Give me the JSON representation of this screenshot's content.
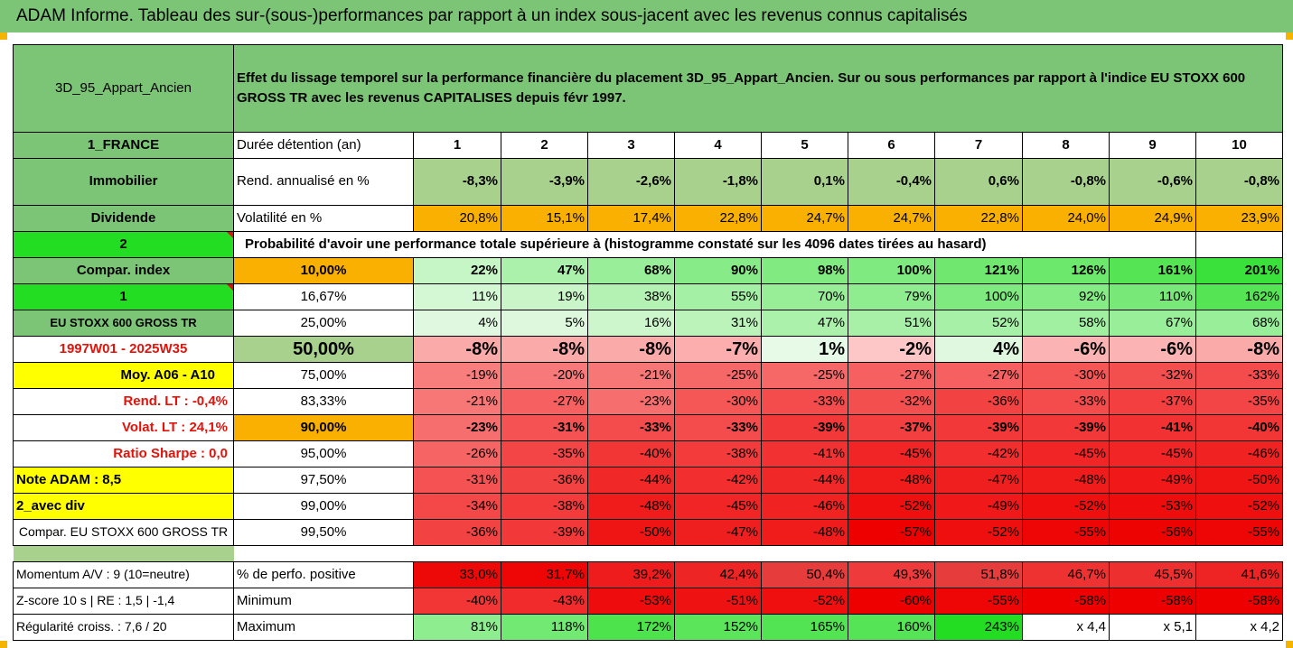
{
  "title": "ADAM Informe. Tableau des sur-(sous-)performances par rapport à un index sous-jacent avec les revenus connus capitalisés",
  "asset_name": "3D_95_Appart_Ancien",
  "description": "Effet du lissage temporel sur la performance financière du placement 3D_95_Appart_Ancien. Sur ou sous performances par rapport à l'indice EU STOXX 600 GROSS TR avec les revenus CAPITALISES depuis févr 1997.",
  "holding": {
    "label": "Durée détention (an)",
    "years": [
      "1",
      "2",
      "3",
      "4",
      "5",
      "6",
      "7",
      "8",
      "9",
      "10"
    ]
  },
  "side_labels": {
    "country": "1_FRANCE",
    "category": "Immobilier",
    "dividend": "Dividende",
    "code2": "2",
    "compar_index": "Compar. index",
    "code1": "1",
    "index_name": "EU STOXX 600 GROSS TR",
    "period": "1997W01 - 2025W35",
    "moy": "Moy. A06 - A10",
    "rend_lt": "Rend. LT :   -0,4%",
    "volat_lt": "Volat. LT :   24,1%",
    "ratio_sharpe": "Ratio Sharpe :   0,0",
    "note_adam": "Note ADAM : 8,5",
    "avec_div": "2_avec div",
    "compar_full": "Compar. EU STOXX 600 GROSS TR"
  },
  "rendement": {
    "label": "Rend. annualisé en %",
    "values": [
      "-8,3%",
      "-3,9%",
      "-2,6%",
      "-1,8%",
      "0,1%",
      "-0,4%",
      "0,6%",
      "-0,8%",
      "-0,6%",
      "-0,8%"
    ]
  },
  "volatilite": {
    "label": "Volatilité en %",
    "values": [
      "20,8%",
      "15,1%",
      "17,4%",
      "22,8%",
      "24,7%",
      "24,7%",
      "22,8%",
      "24,0%",
      "24,9%",
      "23,9%"
    ]
  },
  "probability_caption": "Probabilité d'avoir une performance totale supérieure à (histogramme constaté sur les 4096 dates tirées au hasard)",
  "prob_rows": [
    {
      "p": "10,00%",
      "values": [
        "22%",
        "47%",
        "68%",
        "90%",
        "98%",
        "100%",
        "121%",
        "126%",
        "161%",
        "201%"
      ]
    },
    {
      "p": "16,67%",
      "values": [
        "11%",
        "19%",
        "38%",
        "55%",
        "70%",
        "79%",
        "100%",
        "92%",
        "110%",
        "162%"
      ]
    },
    {
      "p": "25,00%",
      "values": [
        "4%",
        "5%",
        "16%",
        "31%",
        "47%",
        "51%",
        "52%",
        "58%",
        "67%",
        "68%"
      ]
    },
    {
      "p": "50,00%",
      "values": [
        "-8%",
        "-8%",
        "-8%",
        "-7%",
        "1%",
        "-2%",
        "4%",
        "-6%",
        "-6%",
        "-8%"
      ]
    },
    {
      "p": "75,00%",
      "values": [
        "-19%",
        "-20%",
        "-21%",
        "-25%",
        "-25%",
        "-27%",
        "-27%",
        "-30%",
        "-32%",
        "-33%"
      ]
    },
    {
      "p": "83,33%",
      "values": [
        "-21%",
        "-27%",
        "-23%",
        "-30%",
        "-33%",
        "-32%",
        "-36%",
        "-33%",
        "-37%",
        "-35%"
      ]
    },
    {
      "p": "90,00%",
      "values": [
        "-23%",
        "-31%",
        "-33%",
        "-33%",
        "-39%",
        "-37%",
        "-39%",
        "-39%",
        "-41%",
        "-40%"
      ]
    },
    {
      "p": "95,00%",
      "values": [
        "-26%",
        "-35%",
        "-40%",
        "-38%",
        "-41%",
        "-45%",
        "-42%",
        "-45%",
        "-45%",
        "-46%"
      ]
    },
    {
      "p": "97,50%",
      "values": [
        "-31%",
        "-36%",
        "-44%",
        "-42%",
        "-44%",
        "-48%",
        "-47%",
        "-48%",
        "-49%",
        "-50%"
      ]
    },
    {
      "p": "99,00%",
      "values": [
        "-34%",
        "-38%",
        "-48%",
        "-45%",
        "-46%",
        "-52%",
        "-49%",
        "-52%",
        "-53%",
        "-52%"
      ]
    },
    {
      "p": "99,50%",
      "values": [
        "-36%",
        "-39%",
        "-50%",
        "-47%",
        "-48%",
        "-57%",
        "-52%",
        "-55%",
        "-56%",
        "-55%"
      ]
    }
  ],
  "stats": [
    {
      "side": "Momentum A/V : 9 (10=neutre)",
      "label": "% de perfo. positive",
      "values": [
        "33,0%",
        "31,7%",
        "39,2%",
        "42,4%",
        "50,4%",
        "49,3%",
        "51,8%",
        "46,7%",
        "45,5%",
        "41,6%"
      ]
    },
    {
      "side": "Z-score 10 s | RE : 1,5 | -1,4",
      "label": "Minimum",
      "values": [
        "-40%",
        "-43%",
        "-53%",
        "-51%",
        "-52%",
        "-60%",
        "-55%",
        "-58%",
        "-58%",
        "-58%"
      ]
    },
    {
      "side": "Régularité croiss. : 7,6 / 20",
      "label": "Maximum",
      "values": [
        "81%",
        "118%",
        "172%",
        "152%",
        "165%",
        "160%",
        "243%",
        "x 4,4",
        "x 5,1",
        "x 4,2"
      ]
    }
  ],
  "colors": {
    "header_green": "#7cc576",
    "bright_green": "#22dd22",
    "highlight_yellow": "#ffff00",
    "volatility_orange": "#f9b000",
    "negative_red": "#ee0000",
    "red_text": "#e3120b"
  }
}
